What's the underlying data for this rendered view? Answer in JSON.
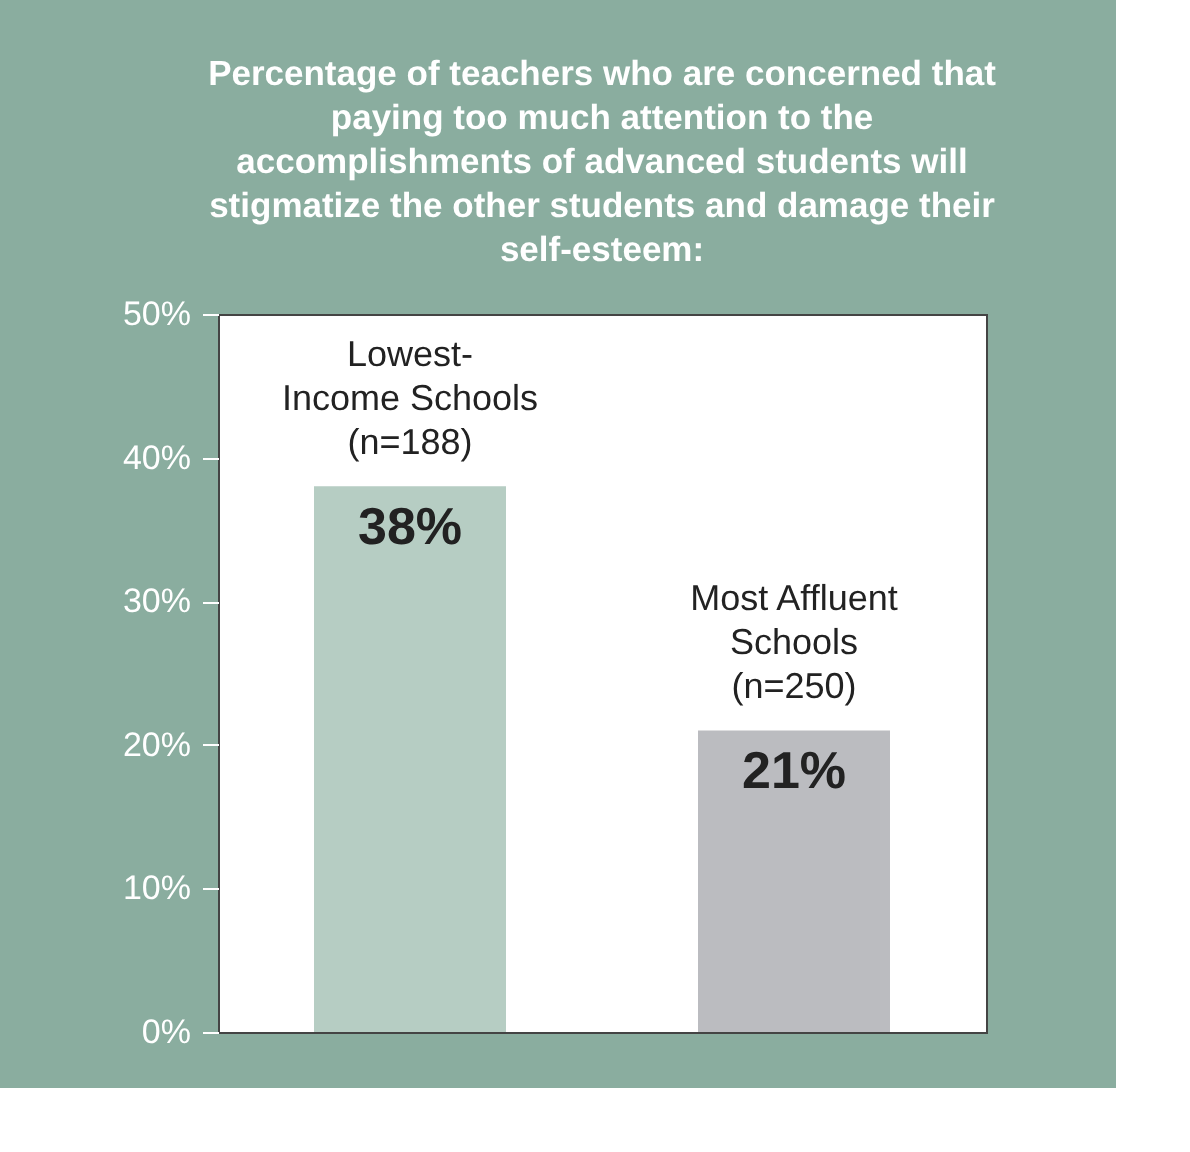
{
  "chart_data": {
    "type": "bar",
    "title": "Percentage of teachers who are concerned that paying too much attention to the accomplishments of advanced students will stigmatize the other students and damage their self-esteem:",
    "categories": [
      "Lowest-\nIncome Schools\n(n=188)",
      "Most Affluent\nSchools\n(n=250)"
    ],
    "values": [
      38,
      21
    ],
    "colors": [
      "#b6cdc3",
      "#bbbcc0"
    ],
    "value_labels": [
      "38%",
      "21%"
    ],
    "ylim": [
      0,
      50
    ],
    "yticks": [
      {
        "value": 0,
        "label": "0%"
      },
      {
        "value": 10,
        "label": "10%"
      },
      {
        "value": 20,
        "label": "20%"
      },
      {
        "value": 30,
        "label": "30%"
      },
      {
        "value": 40,
        "label": "40%"
      },
      {
        "value": 50,
        "label": "50%"
      }
    ],
    "grid": false
  }
}
